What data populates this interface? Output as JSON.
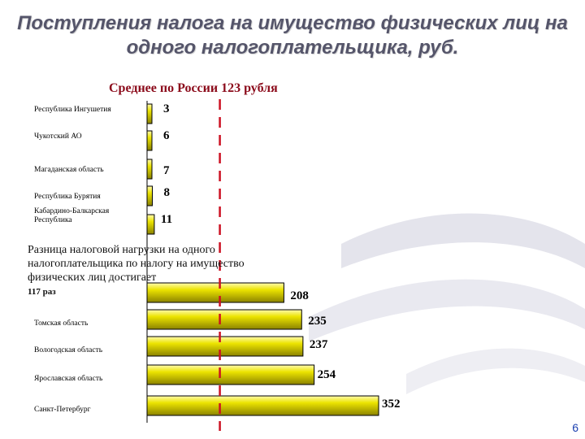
{
  "title": "Поступления налога на имущество физических лиц на одного налогоплательщика, руб.",
  "subtitle": "Среднее по России 123 рубля",
  "note": "Разница налоговой нагрузки на одного налогоплательщика по налогу на имущество физических лиц достигает",
  "note_value": "117 раз",
  "page_number": "6",
  "colors": {
    "bar_fill": "#e8e000",
    "bar_dark": "#8a8200",
    "avg_line": "#cc1122",
    "title": "#55556a"
  },
  "chart_data": {
    "type": "bar",
    "orientation": "horizontal",
    "categories": [
      "Республика Ингушетия",
      "Чукотский АО",
      "Магаданская область",
      "Республика Бурятия",
      "Кабардино-Балкарская Республика",
      "Томская область",
      "Вологодская область",
      "Ярославская область",
      "Санкт-Петербург"
    ],
    "values": [
      3,
      6,
      7,
      8,
      11,
      235,
      237,
      254,
      352
    ],
    "value_labels": [
      "3",
      "6",
      "7",
      "8",
      "11",
      "235",
      "237",
      "254",
      "352"
    ],
    "extra_value_label": "208",
    "reference_line": {
      "value": 123,
      "label": "Среднее по России 123 рубля"
    },
    "xlim": [
      0,
      352
    ],
    "grid": false,
    "legend": "none"
  }
}
